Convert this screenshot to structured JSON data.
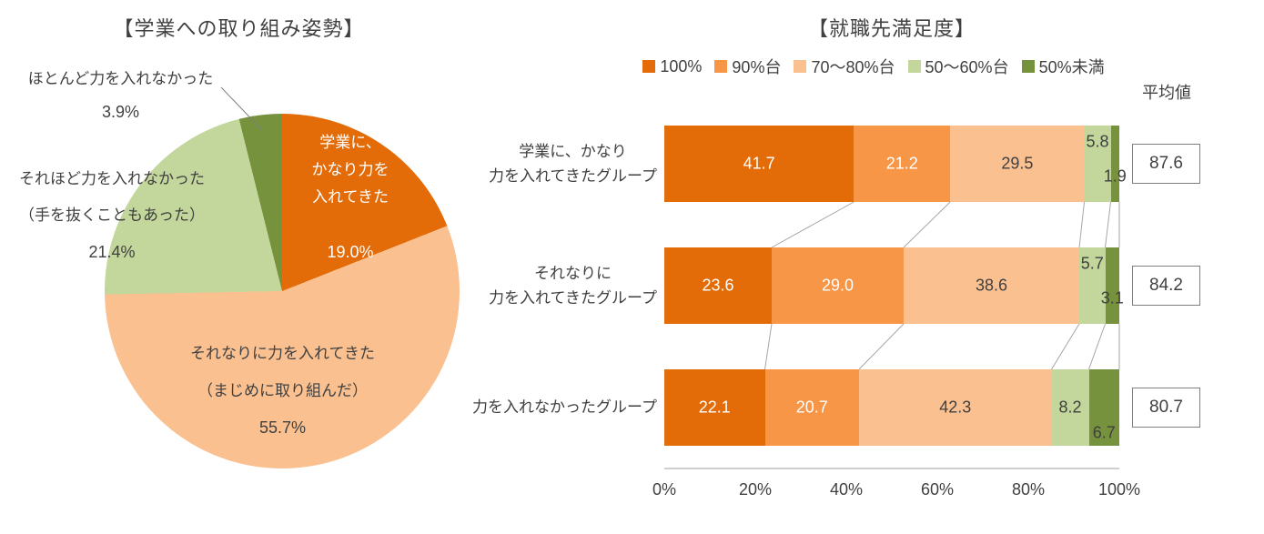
{
  "chart_data": [
    {
      "type": "pie",
      "title": "【学業への取り組み姿勢】",
      "labels": [
        "学業に、かなり力を入れてきた",
        "それなりに力を入れてきた（まじめに取り組んだ）",
        "それほど力を入れなかった（手を抜くこともあった）",
        "ほとんど力を入れなかった"
      ],
      "values": [
        19.0,
        55.7,
        21.4,
        3.9
      ],
      "colors": [
        "#E36C09",
        "#FAC090",
        "#C3D69B",
        "#76923C"
      ],
      "start_angle_deg": 0,
      "direction": "clockwise",
      "labels_display": [
        {
          "lines": [
            "学業に、",
            "かなり力を",
            "入れてきた"
          ],
          "pct": "19.0%"
        },
        {
          "lines": [
            "それなりに力を入れてきた",
            "（まじめに取り組んだ）"
          ],
          "pct": "55.7%"
        },
        {
          "lines": [
            "それほど力を入れなかった",
            "（手を抜くこともあった）"
          ],
          "pct": "21.4%"
        },
        {
          "lines": [
            "ほとんど力を入れなかった"
          ],
          "pct": "3.9%"
        }
      ]
    },
    {
      "type": "bar",
      "subtype": "horizontal-stacked",
      "title": "【就職先満足度】",
      "legend": [
        "100%",
        "90%台",
        "70～80%台",
        "50～60%台",
        "50%未満"
      ],
      "series_colors": [
        "#E36C09",
        "#F79646",
        "#FAC090",
        "#C3D69B",
        "#76923C"
      ],
      "value_label_colors": [
        "#FFFFFF",
        "#FFFFFF",
        "#404040",
        "#404040",
        "#404040"
      ],
      "categories": [
        "学業に、かなり力を入れてきたグループ",
        "それなりに力を入れてきたグループ",
        "力を入れなかったグループ"
      ],
      "category_display_lines": [
        [
          "学業に、かなり",
          "力を入れてきたグループ"
        ],
        [
          "それなりに",
          "力を入れてきたグループ"
        ],
        [
          "力を入れなかったグループ"
        ]
      ],
      "series": [
        {
          "name": "100%",
          "values": [
            41.7,
            23.6,
            22.1
          ]
        },
        {
          "name": "90%台",
          "values": [
            21.2,
            29.0,
            20.7
          ]
        },
        {
          "name": "70～80%台",
          "values": [
            29.5,
            38.6,
            42.3
          ]
        },
        {
          "name": "50～60%台",
          "values": [
            5.8,
            5.7,
            8.2
          ]
        },
        {
          "name": "50%未満",
          "values": [
            1.9,
            3.1,
            6.7
          ]
        }
      ],
      "averages": {
        "header": "平均値",
        "values": [
          87.6,
          84.2,
          80.7
        ]
      },
      "x_ticks": [
        "0%",
        "20%",
        "40%",
        "60%",
        "80%",
        "100%"
      ],
      "xlim": [
        0,
        100
      ],
      "grid": false,
      "legend_position": "top"
    }
  ]
}
